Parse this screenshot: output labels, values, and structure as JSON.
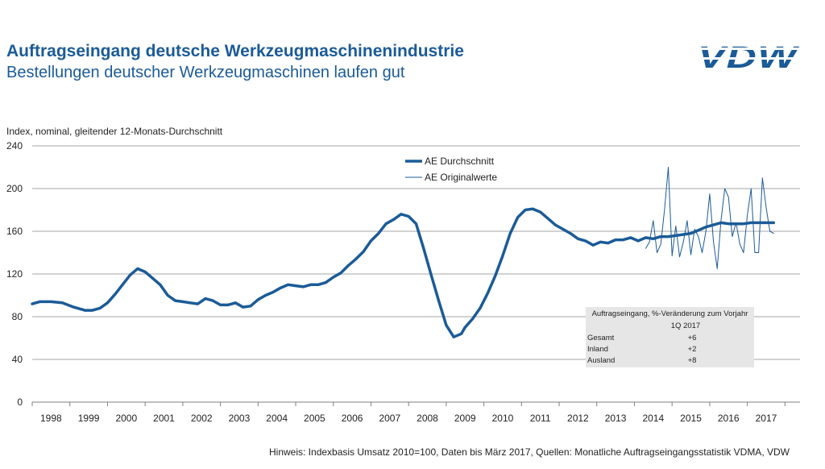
{
  "header": {
    "title": "Auftragseingang deutsche Werkzeugmaschinenindustrie",
    "subtitle": "Bestellungen deutscher Werkzeugmaschinen laufen gut",
    "logo_text": "VDW"
  },
  "footnote": "Hinweis: Indexbasis Umsatz 2010=100, Daten bis März 2017, Quellen: Monatliche Auftragseingangsstatistik VDMA, VDW",
  "colors": {
    "series": "#1b5b97",
    "grid": "#a6a6a6",
    "title": "#1b5b97",
    "table_bg": "#e6e6e6"
  },
  "stat_table": {
    "header": "Auftragseingang, %-Veränderung zum Vorjahr",
    "period": "1Q 2017",
    "rows": [
      {
        "label": "Gesamt",
        "value": "+6"
      },
      {
        "label": "Inland",
        "value": "+2"
      },
      {
        "label": "Ausland",
        "value": "+8"
      }
    ]
  },
  "chart_data": {
    "type": "line",
    "ylabel": "Index, nominal, gleitender 12-Monats-Durchschnitt",
    "ylim": [
      0,
      240
    ],
    "yticks": [
      0,
      40,
      80,
      120,
      160,
      200,
      240
    ],
    "xlim": [
      1997.5,
      2017.9
    ],
    "x_tick_labels": [
      "1998",
      "1999",
      "2000",
      "2001",
      "2002",
      "2003",
      "2004",
      "2005",
      "2006",
      "2007",
      "2008",
      "2009",
      "2010",
      "2011",
      "2012",
      "2013",
      "2014",
      "2015",
      "2016",
      "2017"
    ],
    "grid": "horizontal",
    "legend_position": "top-center",
    "series": [
      {
        "name": "AE Durchschnitt",
        "style": "thick",
        "x": [
          1997.5,
          1997.7,
          1998.0,
          1998.3,
          1998.6,
          1998.9,
          1999.1,
          1999.3,
          1999.5,
          1999.7,
          1999.9,
          2000.1,
          2000.3,
          2000.5,
          2000.7,
          2000.9,
          2001.1,
          2001.3,
          2001.5,
          2001.7,
          2001.9,
          2002.1,
          2002.3,
          2002.5,
          2002.7,
          2002.9,
          2003.1,
          2003.3,
          2003.5,
          2003.7,
          2003.9,
          2004.1,
          2004.3,
          2004.5,
          2004.7,
          2004.9,
          2005.1,
          2005.3,
          2005.5,
          2005.7,
          2005.9,
          2006.1,
          2006.3,
          2006.5,
          2006.7,
          2006.9,
          2007.1,
          2007.3,
          2007.5,
          2007.7,
          2007.9,
          2008.1,
          2008.3,
          2008.5,
          2008.7,
          2008.9,
          2009.0,
          2009.2,
          2009.4,
          2009.6,
          2009.8,
          2010.0,
          2010.2,
          2010.4,
          2010.6,
          2010.8,
          2011.0,
          2011.2,
          2011.4,
          2011.6,
          2011.8,
          2012.0,
          2012.2,
          2012.4,
          2012.6,
          2012.8,
          2013.0,
          2013.2,
          2013.4,
          2013.6,
          2013.8,
          2014.0,
          2014.2,
          2014.4,
          2014.6,
          2014.8,
          2015.0,
          2015.2,
          2015.4,
          2015.6,
          2015.8,
          2016.0,
          2016.2,
          2016.4,
          2016.6,
          2016.8,
          2017.0,
          2017.2
        ],
        "y": [
          92,
          94,
          94,
          93,
          89,
          86,
          86,
          88,
          93,
          101,
          110,
          119,
          125,
          122,
          116,
          110,
          100,
          95,
          94,
          93,
          92,
          97,
          95,
          91,
          91,
          93,
          89,
          90,
          96,
          100,
          103,
          107,
          110,
          109,
          108,
          110,
          110,
          112,
          117,
          121,
          128,
          134,
          141,
          151,
          158,
          167,
          171,
          176,
          174,
          167,
          144,
          119,
          95,
          72,
          61,
          64,
          70,
          78,
          88,
          102,
          118,
          137,
          158,
          173,
          180,
          181,
          178,
          172,
          166,
          162,
          158,
          153,
          151,
          147,
          150,
          149,
          152,
          152,
          154,
          151,
          154,
          153,
          155,
          155,
          156,
          157,
          158,
          161,
          164,
          166,
          168,
          167,
          167,
          167,
          168,
          168,
          168,
          168
        ]
      },
      {
        "name": "AE Originalwerte",
        "style": "thin",
        "x": [
          2013.8,
          2013.9,
          2014.0,
          2014.1,
          2014.2,
          2014.3,
          2014.4,
          2014.5,
          2014.6,
          2014.7,
          2014.8,
          2014.9,
          2015.0,
          2015.1,
          2015.2,
          2015.3,
          2015.4,
          2015.5,
          2015.6,
          2015.7,
          2015.8,
          2015.9,
          2016.0,
          2016.1,
          2016.2,
          2016.3,
          2016.4,
          2016.5,
          2016.6,
          2016.7,
          2016.8,
          2016.9,
          2017.0,
          2017.1,
          2017.2
        ],
        "y": [
          144,
          150,
          170,
          140,
          148,
          180,
          220,
          137,
          165,
          136,
          150,
          170,
          138,
          162,
          155,
          140,
          160,
          195,
          150,
          125,
          170,
          200,
          192,
          155,
          168,
          148,
          140,
          175,
          200,
          140,
          140,
          210,
          182,
          160,
          158
        ]
      }
    ]
  }
}
